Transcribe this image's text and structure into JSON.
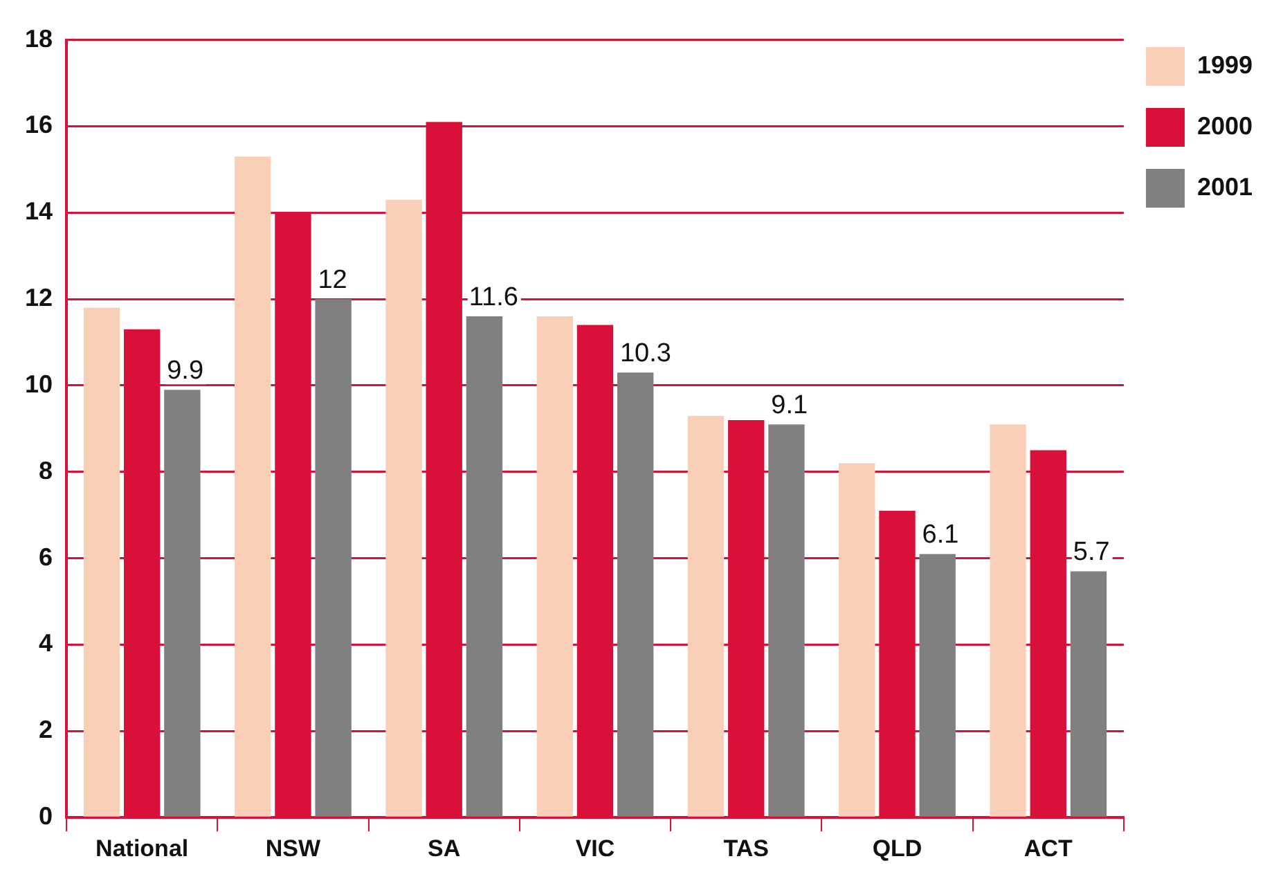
{
  "chart_data": {
    "type": "bar",
    "categories": [
      "National",
      "NSW",
      "SA",
      "VIC",
      "TAS",
      "QLD",
      "ACT"
    ],
    "series": [
      {
        "name": "1999",
        "color": "#f9cfb8",
        "values": [
          11.8,
          15.3,
          14.3,
          11.6,
          9.3,
          8.2,
          9.1
        ]
      },
      {
        "name": "2000",
        "color": "#d9113a",
        "values": [
          11.3,
          14.0,
          16.1,
          11.4,
          9.2,
          7.1,
          8.5
        ]
      },
      {
        "name": "2001",
        "color": "#808080",
        "values": [
          9.9,
          12,
          11.6,
          10.3,
          9.1,
          6.1,
          5.7
        ],
        "value_labels": [
          "9.9",
          "12",
          "11.6",
          "10.3",
          "9.1",
          "6.1",
          "5.7"
        ]
      }
    ],
    "ylim": [
      0,
      18
    ],
    "yticks": [
      0,
      2,
      4,
      6,
      8,
      10,
      12,
      14,
      16,
      18
    ],
    "grid": "y",
    "legend": "top right"
  }
}
